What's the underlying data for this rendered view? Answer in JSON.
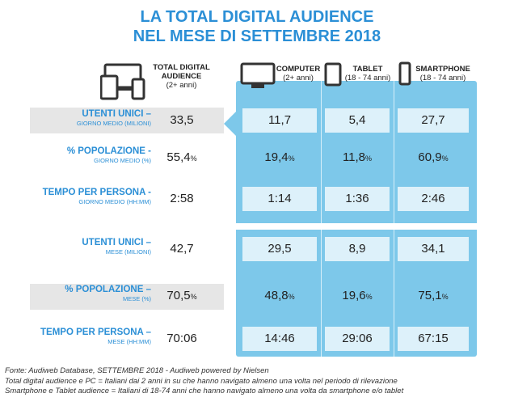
{
  "title": {
    "line1": "LA TOTAL DIGITAL AUDIENCE",
    "line2": "NEL MESE DI SETTEMBRE 2018"
  },
  "headers": {
    "total": {
      "label": "TOTAL DIGITAL AUDIENCE",
      "sub": "(2+ anni)",
      "icon": "devices-icon"
    },
    "computer": {
      "label": "COMPUTER",
      "sub": "(2+ anni)",
      "icon": "monitor-icon"
    },
    "tablet": {
      "label": "TABLET",
      "sub": "(18 - 74 anni)",
      "icon": "tablet-icon"
    },
    "smartphone": {
      "label": "SMARTPHONE",
      "sub": "(18 - 74 anni)",
      "icon": "smartphone-icon"
    }
  },
  "rows": [
    {
      "label": "UTENTI UNICI –",
      "sub": "GIORNO MEDIO (MILIONI)",
      "total": "33,5",
      "computer": "11,7",
      "tablet": "5,4",
      "smartphone": "27,7",
      "pct": false
    },
    {
      "label": "% POPOLAZIONE -",
      "sub": "GIORNO MEDIO (%)",
      "total": "55,4",
      "computer": "19,4",
      "tablet": "11,8",
      "smartphone": "60,9",
      "pct": true
    },
    {
      "label": "TEMPO PER PERSONA -",
      "sub": "GIORNO MEDIO (HH:MM)",
      "total": "2:58",
      "computer": "1:14",
      "tablet": "1:36",
      "smartphone": "2:46",
      "pct": false
    },
    {
      "label": "UTENTI UNICI –",
      "sub": "MESE (MILIONI)",
      "total": "42,7",
      "computer": "29,5",
      "tablet": "8,9",
      "smartphone": "34,1",
      "pct": false
    },
    {
      "label": "% POPOLAZIONE –",
      "sub": "MESE (%)",
      "total": "70,5",
      "computer": "48,8",
      "tablet": "19,6",
      "smartphone": "75,1",
      "pct": true
    },
    {
      "label": "TEMPO PER PERSONA –",
      "sub": "MESE (HH:MM)",
      "total": "70:06",
      "computer": "14:46",
      "tablet": "29:06",
      "smartphone": "67:15",
      "pct": false
    }
  ],
  "pct_symbol": "%",
  "footer": {
    "line1": "Fonte: Audiweb Database, SETTEMBRE 2018 - Audiweb powered by Nielsen",
    "line2": "Total digital audience e PC = Italiani dai 2 anni in su che hanno navigato almeno una volta nel periodo di rilevazione",
    "line3": "Smartphone e Tablet audience = Italiani di 18-74 anni che hanno navigato almeno una volta da smartphone e/o tablet"
  },
  "colors": {
    "title": "#2b8fd6",
    "panel": "#7dc8ea",
    "cell": "#ddf1fa",
    "band": "#e6e6e6"
  }
}
